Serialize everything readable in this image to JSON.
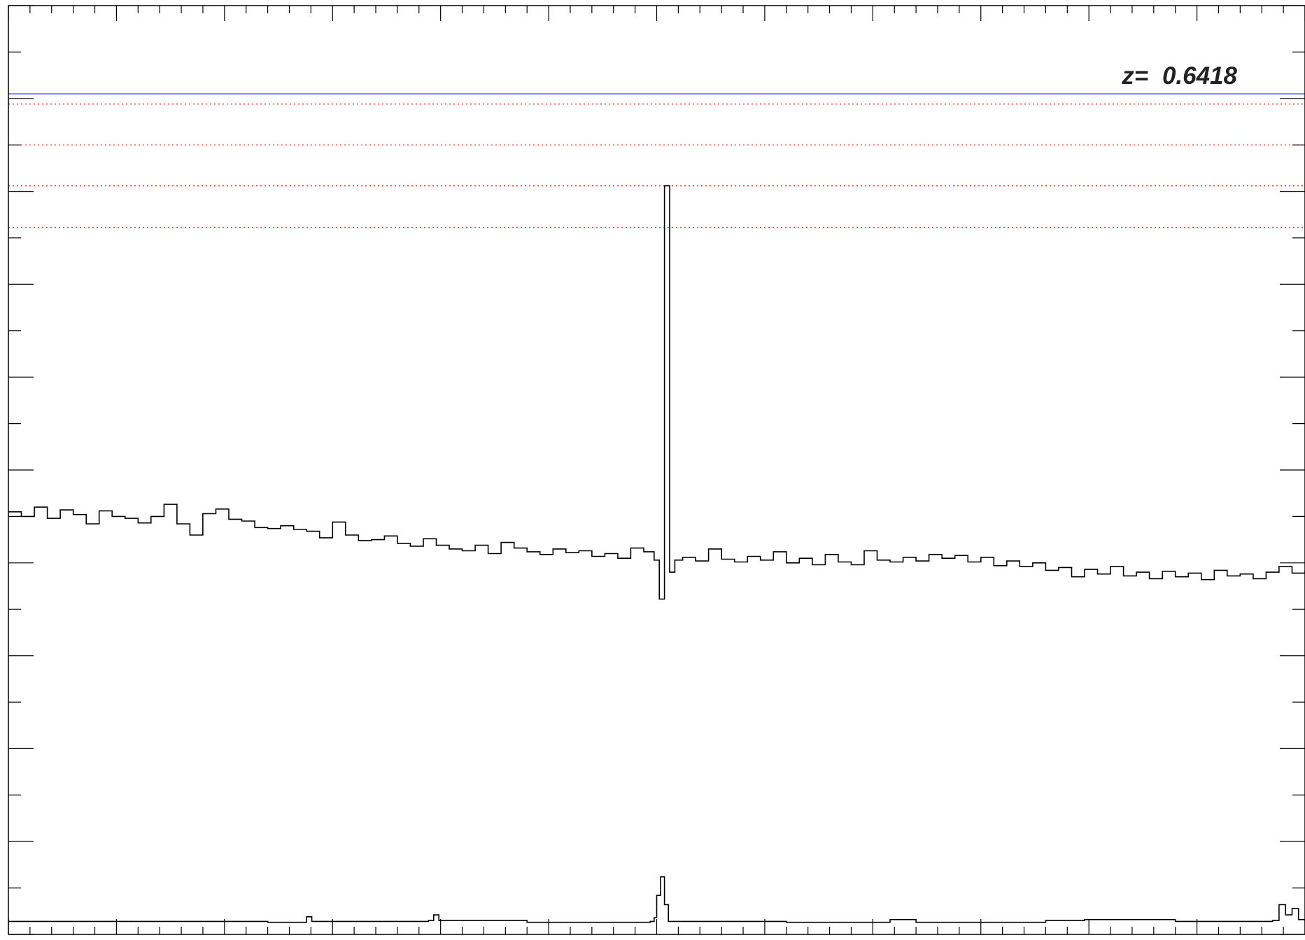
{
  "annotation": {
    "label": "z=",
    "value": "0.6418"
  },
  "chart_data": {
    "type": "line",
    "title": "",
    "xlabel": "",
    "ylabel": "",
    "xlim": [
      0,
      1000
    ],
    "ylim": [
      0,
      100
    ],
    "grid": false,
    "colors": {
      "spectrum": "#000000",
      "error": "#000000",
      "reference_solid": "#3333ff",
      "reference_dotted": "#ff3333"
    },
    "reference_lines": [
      {
        "style": "solid",
        "y": 90.5
      },
      {
        "style": "dotted",
        "y": 89.4
      },
      {
        "style": "dotted",
        "y": 85.0
      },
      {
        "style": "dotted",
        "y": 80.6
      },
      {
        "style": "dotted",
        "y": 76.1
      }
    ],
    "series": [
      {
        "role": "spectrum",
        "style": "step",
        "points": [
          [
            0,
            45.5
          ],
          [
            10,
            45.0
          ],
          [
            20,
            46.0
          ],
          [
            30,
            44.8
          ],
          [
            40,
            45.7
          ],
          [
            50,
            45.2
          ],
          [
            60,
            44.2
          ],
          [
            70,
            45.6
          ],
          [
            80,
            45.0
          ],
          [
            90,
            44.8
          ],
          [
            100,
            44.3
          ],
          [
            110,
            45.0
          ],
          [
            120,
            46.3
          ],
          [
            130,
            44.2
          ],
          [
            140,
            43.0
          ],
          [
            150,
            45.3
          ],
          [
            160,
            45.8
          ],
          [
            170,
            44.7
          ],
          [
            180,
            44.5
          ],
          [
            190,
            43.8
          ],
          [
            200,
            43.7
          ],
          [
            210,
            44.0
          ],
          [
            220,
            43.6
          ],
          [
            230,
            43.4
          ],
          [
            240,
            42.7
          ],
          [
            250,
            44.4
          ],
          [
            260,
            43.0
          ],
          [
            270,
            42.4
          ],
          [
            280,
            42.5
          ],
          [
            290,
            42.9
          ],
          [
            300,
            42.1
          ],
          [
            310,
            41.8
          ],
          [
            320,
            42.6
          ],
          [
            330,
            41.9
          ],
          [
            340,
            41.5
          ],
          [
            350,
            41.3
          ],
          [
            360,
            41.9
          ],
          [
            370,
            41.0
          ],
          [
            380,
            42.2
          ],
          [
            390,
            41.6
          ],
          [
            400,
            41.2
          ],
          [
            410,
            40.9
          ],
          [
            420,
            41.5
          ],
          [
            430,
            41.1
          ],
          [
            440,
            41.3
          ],
          [
            450,
            40.7
          ],
          [
            460,
            41.0
          ],
          [
            470,
            40.5
          ],
          [
            480,
            41.6
          ],
          [
            490,
            41.2
          ],
          [
            498,
            40.3
          ],
          [
            502,
            36.1
          ],
          [
            506,
            80.6
          ],
          [
            510,
            39.0
          ],
          [
            514,
            40.3
          ],
          [
            520,
            40.6
          ],
          [
            530,
            40.2
          ],
          [
            540,
            41.5
          ],
          [
            550,
            40.4
          ],
          [
            560,
            40.1
          ],
          [
            570,
            40.7
          ],
          [
            580,
            40.3
          ],
          [
            590,
            41.2
          ],
          [
            600,
            40.0
          ],
          [
            610,
            40.5
          ],
          [
            620,
            39.8
          ],
          [
            630,
            40.9
          ],
          [
            640,
            40.1
          ],
          [
            650,
            39.8
          ],
          [
            660,
            41.3
          ],
          [
            670,
            40.3
          ],
          [
            680,
            40.1
          ],
          [
            690,
            40.6
          ],
          [
            700,
            40.2
          ],
          [
            710,
            40.9
          ],
          [
            720,
            40.5
          ],
          [
            730,
            40.8
          ],
          [
            740,
            40.1
          ],
          [
            750,
            40.6
          ],
          [
            760,
            39.7
          ],
          [
            770,
            40.2
          ],
          [
            780,
            39.6
          ],
          [
            790,
            40.0
          ],
          [
            800,
            39.2
          ],
          [
            810,
            39.5
          ],
          [
            820,
            38.5
          ],
          [
            830,
            39.3
          ],
          [
            840,
            38.8
          ],
          [
            850,
            39.6
          ],
          [
            860,
            38.6
          ],
          [
            870,
            39.0
          ],
          [
            880,
            38.3
          ],
          [
            890,
            39.1
          ],
          [
            900,
            38.5
          ],
          [
            910,
            38.9
          ],
          [
            920,
            38.2
          ],
          [
            930,
            39.2
          ],
          [
            940,
            38.6
          ],
          [
            950,
            38.8
          ],
          [
            960,
            38.3
          ],
          [
            970,
            39.0
          ],
          [
            980,
            39.6
          ],
          [
            990,
            38.9
          ],
          [
            1000,
            39.2
          ]
        ]
      },
      {
        "role": "error",
        "style": "step",
        "points": [
          [
            0,
            1.4
          ],
          [
            100,
            1.4
          ],
          [
            200,
            1.3
          ],
          [
            228,
            1.3
          ],
          [
            230,
            1.9
          ],
          [
            234,
            1.4
          ],
          [
            300,
            1.4
          ],
          [
            324,
            1.5
          ],
          [
            328,
            2.1
          ],
          [
            332,
            1.5
          ],
          [
            400,
            1.3
          ],
          [
            495,
            1.4
          ],
          [
            498,
            1.8
          ],
          [
            500,
            4.2
          ],
          [
            503,
            6.2
          ],
          [
            506,
            3.2
          ],
          [
            509,
            1.4
          ],
          [
            600,
            1.3
          ],
          [
            680,
            1.6
          ],
          [
            700,
            1.3
          ],
          [
            800,
            1.5
          ],
          [
            830,
            1.6
          ],
          [
            900,
            1.4
          ],
          [
            975,
            1.5
          ],
          [
            980,
            3.2
          ],
          [
            985,
            2.1
          ],
          [
            990,
            2.8
          ],
          [
            995,
            1.6
          ],
          [
            1000,
            1.4
          ]
        ]
      }
    ]
  }
}
